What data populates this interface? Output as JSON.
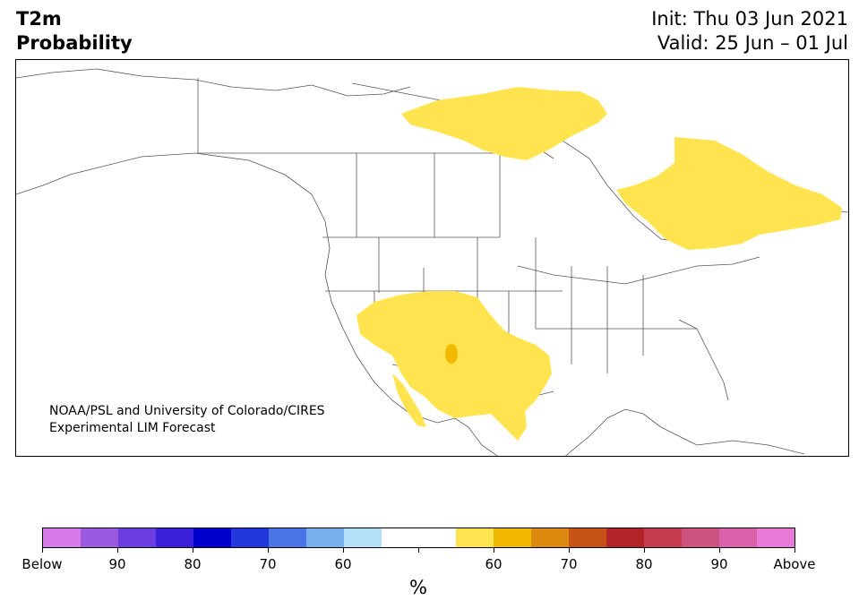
{
  "title": {
    "left_line1": "T2m",
    "left_line2": "Probability",
    "right_line1": "Init: Thu 03 Jun 2021",
    "right_line2": "Valid: 25 Jun – 01 Jul"
  },
  "credit": {
    "line1": "NOAA/PSL and University of Colorado/CIRES",
    "line2": "Experimental LIM Forecast"
  },
  "colorbar": {
    "unit": "%",
    "colors": [
      "#d57ae8",
      "#9b59e0",
      "#6a3ee0",
      "#3a20d8",
      "#0000cc",
      "#2238dc",
      "#4a74e4",
      "#78b0ef",
      "#b4e0fa",
      "#ffffff",
      "#ffffff",
      "#ffe44f",
      "#f2b800",
      "#dc8a10",
      "#c65318",
      "#b22428",
      "#c43c4e",
      "#cc5282",
      "#da62aa",
      "#e87ad8"
    ],
    "tick_labels": [
      "Below",
      "90",
      "80",
      "70",
      "60",
      "",
      "60",
      "70",
      "80",
      "90",
      "Above"
    ]
  },
  "map": {
    "land_color": "#ffffff",
    "border_color": "#555555",
    "anomaly_color": "#ffe44f",
    "anomaly_strong_color": "#f2b800"
  }
}
